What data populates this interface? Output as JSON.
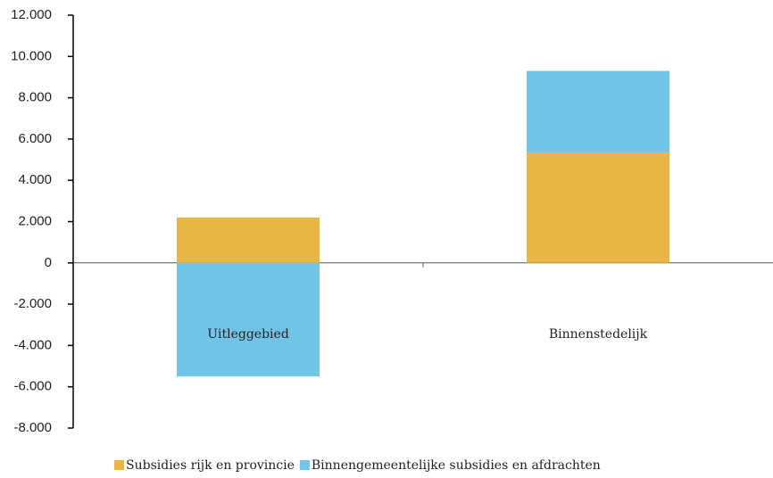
{
  "chart_data": {
    "type": "stacked_bar",
    "categories": [
      "Uitleggebied",
      "Binnenstedelijk"
    ],
    "series": [
      {
        "name": "Subsidies rijk en provincie",
        "color": "#e8b644",
        "values": [
          2200,
          5350
        ]
      },
      {
        "name": "Binnengemeentelijke subsidies en afdrachten",
        "color": "#72c4e6",
        "values": [
          -5500,
          3950
        ]
      }
    ],
    "ylim": [
      -8000,
      12000
    ],
    "yticks": [
      {
        "value": -8000,
        "label": "-8.000"
      },
      {
        "value": -6000,
        "label": "-6.000"
      },
      {
        "value": -4000,
        "label": "-4.000"
      },
      {
        "value": -2000,
        "label": "-2.000"
      },
      0,
      {
        "value": 2000,
        "label": "2.000"
      },
      {
        "value": 4000,
        "label": "4.000"
      },
      {
        "value": 6000,
        "label": "6.000"
      },
      {
        "value": 8000,
        "label": "8.000"
      },
      {
        "value": 10000,
        "label": "10.000"
      },
      {
        "value": 12000,
        "label": "12.000"
      }
    ],
    "legend": "bottom"
  }
}
